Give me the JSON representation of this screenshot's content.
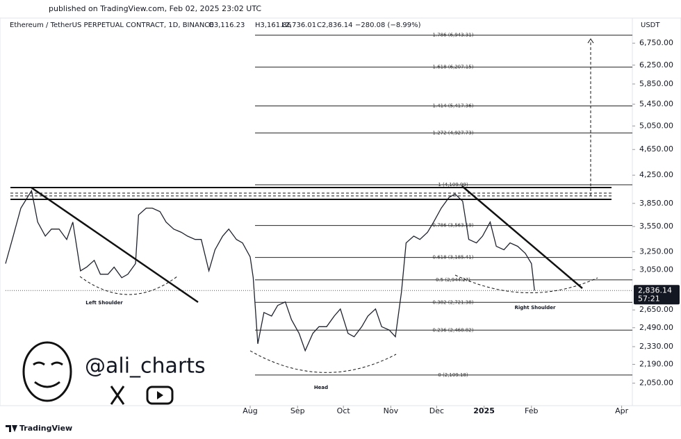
{
  "header": {
    "published": "published on TradingView.com, Feb 02, 2025 23:02 UTC",
    "symbol": "Ethereum / TetherUS PERPETUAL CONTRACT, 1D, BINANCE",
    "open": "O3,116.23",
    "high": "H3,161.86",
    "low": "L2,736.01",
    "close": "C2,836.14",
    "change": "−280.08 (−8.99%)",
    "currency": "USDT"
  },
  "chart_data": {
    "type": "line",
    "log_scale": true,
    "xlim": [
      0,
      410
    ],
    "ylim": [
      1890,
      7300
    ],
    "xticks": [
      {
        "value": 160,
        "label": "Aug"
      },
      {
        "value": 191,
        "label": "Sep"
      },
      {
        "value": 221,
        "label": "Oct"
      },
      {
        "value": 252,
        "label": "Nov"
      },
      {
        "value": 282,
        "label": "Dec"
      },
      {
        "value": 313,
        "label": "2025"
      },
      {
        "value": 344,
        "label": "Feb"
      },
      {
        "value": 403,
        "label": "Apr"
      }
    ],
    "yticks": [
      {
        "value": 6750,
        "label": "6,750.00"
      },
      {
        "value": 6250,
        "label": "6,250.00"
      },
      {
        "value": 5850,
        "label": "5,850.00"
      },
      {
        "value": 5450,
        "label": "5,450.00"
      },
      {
        "value": 5050,
        "label": "5,050.00"
      },
      {
        "value": 4650,
        "label": "4,650.00"
      },
      {
        "value": 4250,
        "label": "4,250.00"
      },
      {
        "value": 3850,
        "label": "3,850.00"
      },
      {
        "value": 3550,
        "label": "3,550.00"
      },
      {
        "value": 3250,
        "label": "3,250.00"
      },
      {
        "value": 3050,
        "label": "3,050.00"
      },
      {
        "value": 2650,
        "label": "2,650.00"
      },
      {
        "value": 2490,
        "label": "2,490.00"
      },
      {
        "value": 2330,
        "label": "2,330.00"
      },
      {
        "value": 2190,
        "label": "2,190.00"
      },
      {
        "value": 2050,
        "label": "2,050.00"
      }
    ],
    "series": [
      {
        "name": "ETHUSDT",
        "color": "#1e222d",
        "x": [
          0,
          5,
          10,
          17,
          21,
          26,
          30,
          35,
          40,
          44,
          49,
          53,
          58,
          62,
          67,
          71,
          76,
          80,
          85,
          87,
          92,
          96,
          101,
          105,
          110,
          115,
          119,
          124,
          128,
          133,
          137,
          142,
          146,
          151,
          155,
          160,
          162,
          165,
          169,
          174,
          178,
          183,
          187,
          192,
          196,
          201,
          205,
          210,
          215,
          219,
          224,
          228,
          233,
          237,
          242,
          246,
          251,
          255,
          259,
          262,
          267,
          271,
          276,
          280,
          285,
          290,
          294,
          299,
          303,
          308,
          312,
          317,
          321,
          326,
          330,
          335,
          340,
          344,
          346
        ],
        "values": [
          3117,
          3433,
          3787,
          4025,
          3606,
          3433,
          3518,
          3518,
          3393,
          3606,
          3039,
          3079,
          3153,
          3003,
          3003,
          3079,
          2967,
          3003,
          3117,
          3697,
          3787,
          3787,
          3741,
          3606,
          3518,
          3478,
          3433,
          3393,
          3393,
          3039,
          3272,
          3433,
          3518,
          3393,
          3352,
          3192,
          2967,
          2353,
          2626,
          2594,
          2692,
          2726,
          2562,
          2441,
          2297,
          2441,
          2499,
          2499,
          2594,
          2659,
          2441,
          2412,
          2499,
          2594,
          2659,
          2499,
          2469,
          2412,
          2826,
          3352,
          3433,
          3393,
          3478,
          3606,
          3787,
          3929,
          3978,
          3879,
          3393,
          3352,
          3433,
          3606,
          3312,
          3272,
          3352,
          3312,
          3231,
          3117,
          2836.14
        ]
      }
    ],
    "fib_levels": [
      {
        "label": "1.786 (6,943.31)",
        "value": 6943.31
      },
      {
        "label": "1.618 (6,207.15)",
        "value": 6207.15
      },
      {
        "label": "1.414 (5,417.36)",
        "value": 5417.36
      },
      {
        "label": "1.272 (4,927.73)",
        "value": 4927.73
      },
      {
        "label": "1 (4,109.99)",
        "value": 4109.99
      },
      {
        "label": "0.786 (3,563.19)",
        "value": 3563.19
      },
      {
        "label": "0.618 (3,185.41)",
        "value": 3185.41
      },
      {
        "label": "0.5 (2,944.27)",
        "value": 2944.27
      },
      {
        "label": "0.382 (2,721.38)",
        "value": 2721.38
      },
      {
        "label": "0.236 (2,468.82)",
        "value": 2468.82
      },
      {
        "label": "0 (2,109.18)",
        "value": 2109.18
      }
    ],
    "last_price": {
      "value": 2836.14,
      "label": "2,836.14",
      "countdown": "57:21"
    },
    "annotations": [
      "Left Shoulder",
      "Head",
      "Right Shoulder"
    ]
  },
  "watermark": {
    "handle": "@ali_charts"
  },
  "footer": {
    "brand": "TradingView"
  }
}
